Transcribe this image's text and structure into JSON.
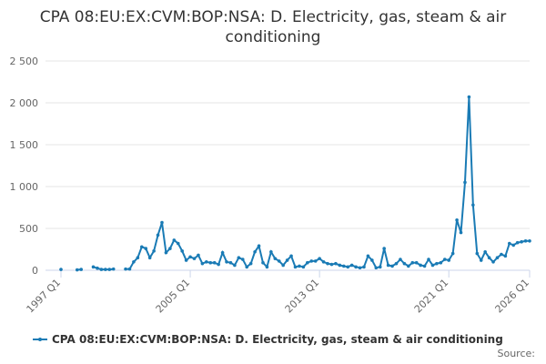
{
  "chart_data": {
    "type": "line",
    "title": "CPA 08:EU:EX:CVM:BOP:NSA: D. Electricity, gas, steam & air conditioning",
    "source": "Source:",
    "categories": [
      "1997 Q1",
      null,
      null,
      null,
      null,
      null,
      null,
      null,
      null,
      null,
      null,
      null,
      null,
      null,
      null,
      null,
      null,
      null,
      null,
      null,
      null,
      null,
      null,
      null,
      null,
      null,
      null,
      null,
      null,
      null,
      null,
      null,
      "2005 Q1",
      null,
      null,
      null,
      null,
      null,
      null,
      null,
      null,
      null,
      null,
      null,
      null,
      null,
      null,
      null,
      null,
      null,
      null,
      null,
      null,
      null,
      null,
      null,
      null,
      null,
      null,
      null,
      null,
      null,
      null,
      null,
      "2013 Q1",
      null,
      null,
      null,
      null,
      null,
      null,
      null,
      null,
      null,
      null,
      null,
      null,
      null,
      null,
      null,
      null,
      null,
      null,
      null,
      null,
      null,
      null,
      null,
      null,
      null,
      null,
      null,
      null,
      null,
      null,
      null,
      "2021 Q1",
      null,
      null,
      null,
      null,
      null,
      null,
      null,
      null,
      null,
      null,
      null,
      null,
      null,
      null,
      null,
      null,
      null,
      null,
      null,
      "2026 Q1"
    ],
    "series": [
      {
        "name": "CPA 08:EU:EX:CVM:BOP:NSA: D. Electricity, gas, steam & air conditioning",
        "color": "#1a7bb5",
        "values": [
          10,
          null,
          null,
          null,
          5,
          10,
          null,
          null,
          40,
          25,
          10,
          10,
          10,
          15,
          null,
          null,
          15,
          15,
          100,
          150,
          280,
          260,
          150,
          230,
          420,
          570,
          210,
          260,
          360,
          320,
          230,
          120,
          160,
          140,
          180,
          80,
          100,
          90,
          90,
          70,
          210,
          100,
          90,
          60,
          150,
          130,
          40,
          80,
          220,
          290,
          90,
          40,
          220,
          140,
          110,
          60,
          120,
          170,
          40,
          50,
          40,
          90,
          110,
          110,
          140,
          100,
          80,
          70,
          80,
          60,
          50,
          40,
          60,
          40,
          30,
          40,
          170,
          120,
          30,
          40,
          260,
          60,
          50,
          80,
          130,
          80,
          50,
          90,
          90,
          60,
          50,
          130,
          60,
          80,
          90,
          130,
          120,
          200,
          600,
          450,
          1050,
          2070,
          780,
          200,
          120,
          220,
          150,
          100,
          150,
          190,
          170,
          320,
          300,
          330,
          340,
          350,
          350
        ]
      }
    ],
    "ylim": [
      0,
      2500
    ],
    "yticks": [
      0,
      500,
      {
        "value": 1000,
        "label": "1 000"
      },
      {
        "value": 1500,
        "label": "1 500"
      },
      {
        "value": 2000,
        "label": "2 000"
      },
      {
        "value": 2500,
        "label": "2 500"
      }
    ],
    "grid": true
  }
}
